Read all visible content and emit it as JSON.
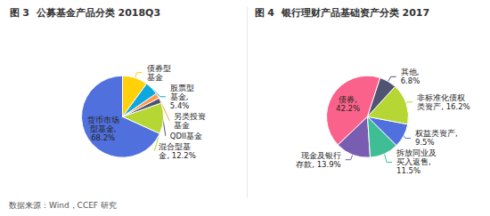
{
  "chart_data": [
    {
      "type": "pie",
      "title": "图 3  公募基金产品分类 2018Q3",
      "categories": [
        "货币市场\n型基金,\n68.2%",
        "混合型基\n金, 12.2%",
        "QDII基金",
        "另类投资\n基金",
        "股票型\n基金,\n5.4%",
        "债券型\n基金"
      ],
      "values": [
        68.2,
        12.2,
        2.1,
        2.1,
        5.4,
        10.0
      ],
      "annotations": [
        "数据来源：Wind，CCEF 研究"
      ]
    },
    {
      "type": "pie",
      "title": "图 4  银行理财产品基础资产分类 2017",
      "categories": [
        "债券,\n42.2%",
        "现金及银行\n存款, 13.9%",
        "拆放同业及\n买入返售,\n11.5%",
        "权益类资产,\n9.5%",
        "非标准化债权\n类资产, 16.2%",
        "其他,\n6.8%"
      ],
      "values": [
        42.2,
        13.9,
        11.5,
        9.5,
        16.2,
        6.8
      ]
    }
  ]
}
